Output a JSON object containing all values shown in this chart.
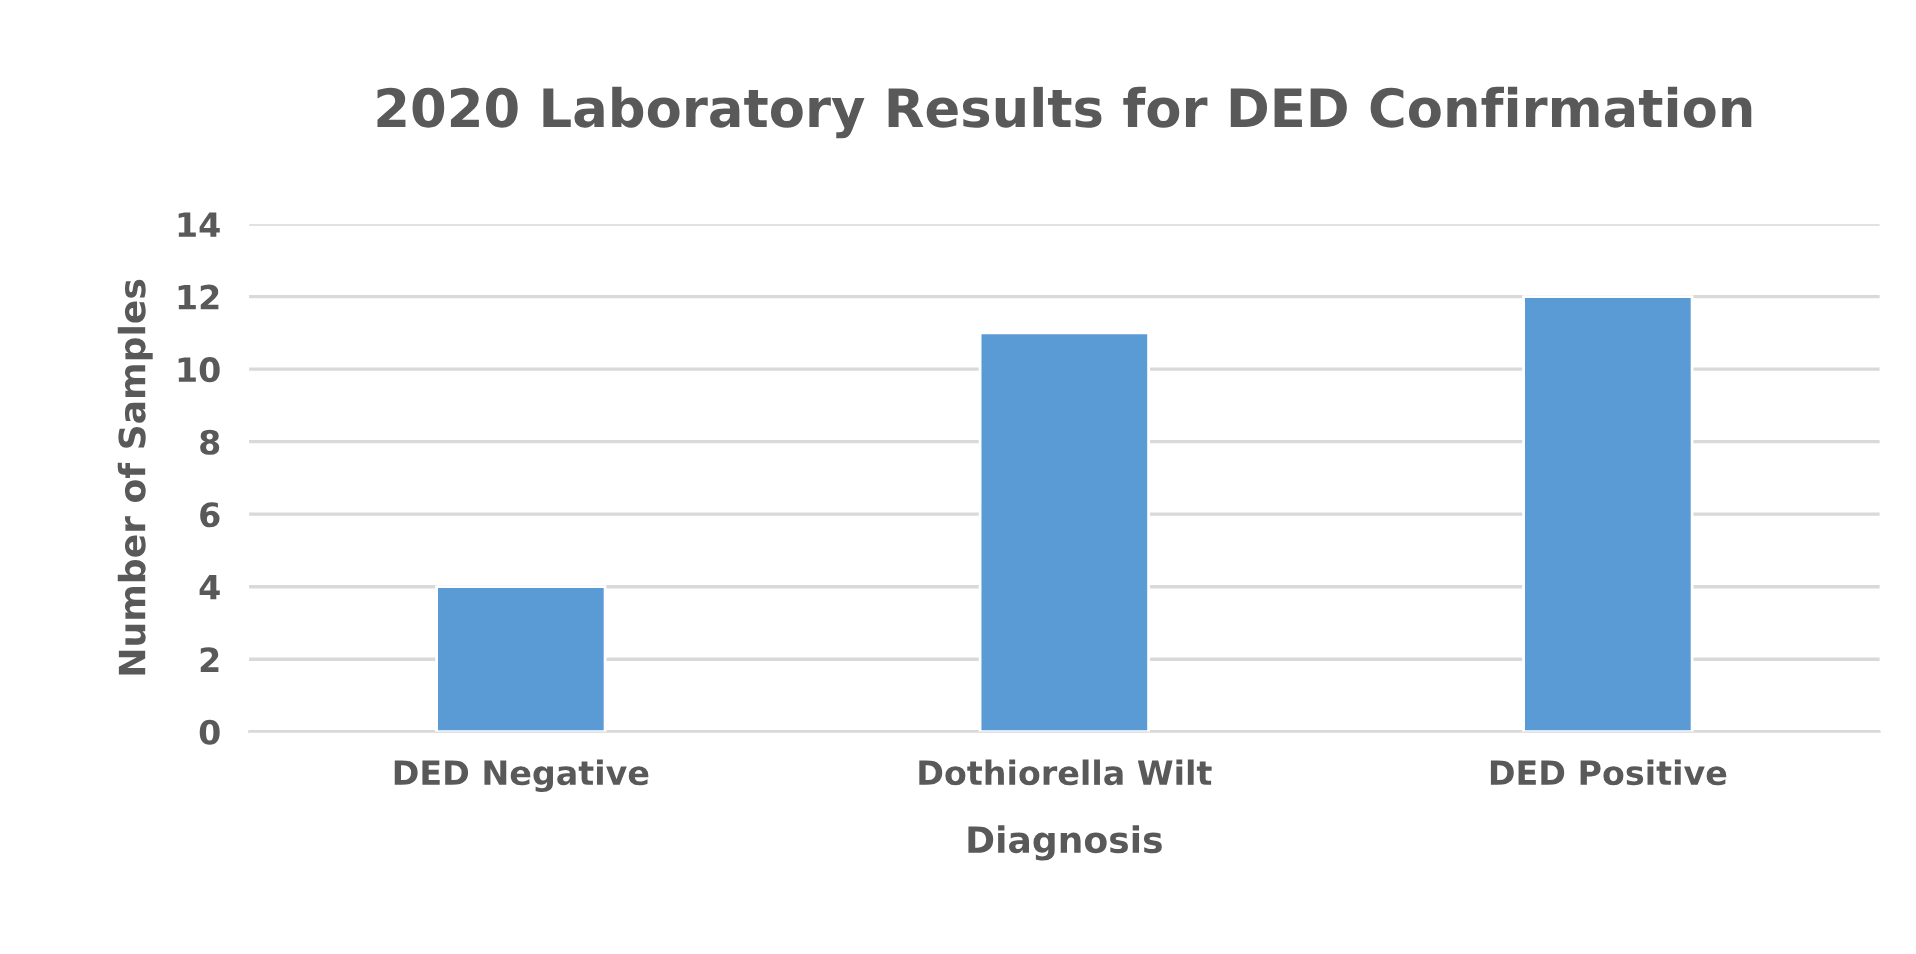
{
  "chart_data": {
    "type": "bar",
    "title": "2020 Laboratory Results for DED Confirmation",
    "xlabel": "Diagnosis",
    "ylabel": "Number of Samples",
    "categories": [
      "DED Negative",
      "Dothiorella Wilt",
      "DED Positive"
    ],
    "values": [
      4,
      11,
      12
    ],
    "color": "#5b9bd5",
    "ylim": [
      0,
      14
    ],
    "yticks": [
      0,
      2,
      4,
      6,
      8,
      10,
      12,
      14
    ],
    "grid": "y",
    "legend": false
  }
}
